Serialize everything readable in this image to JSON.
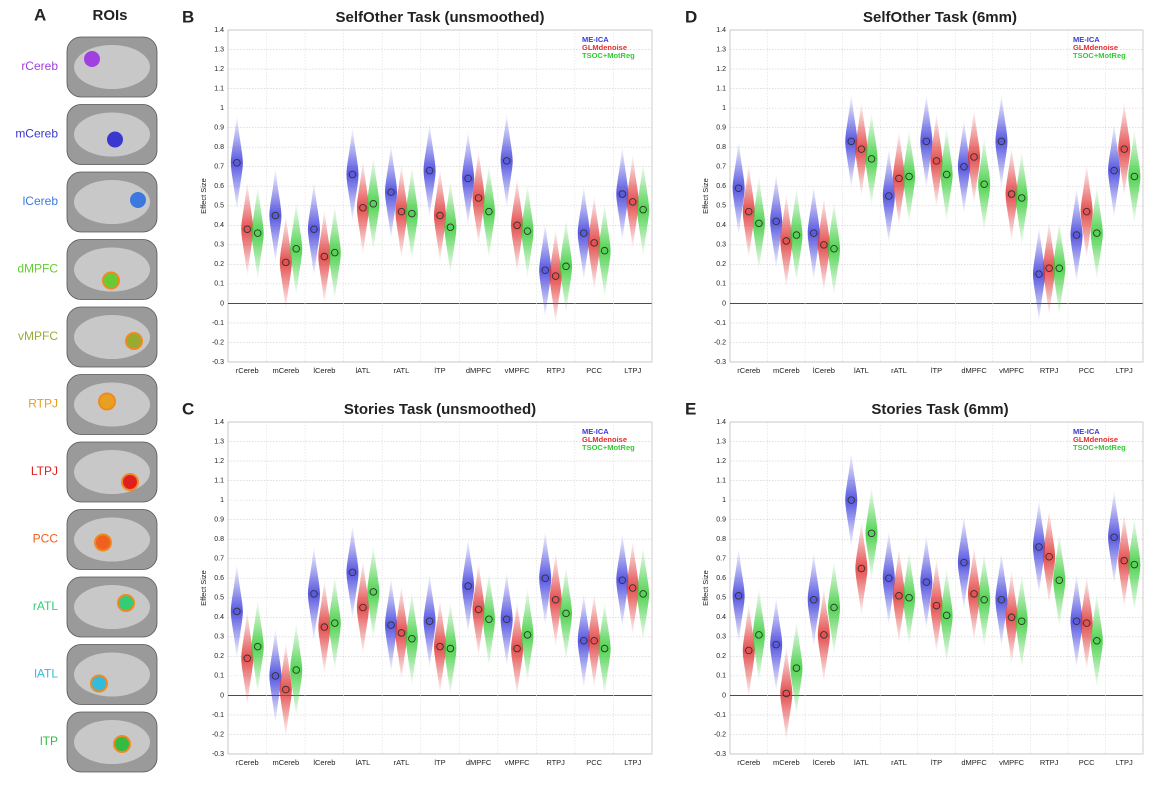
{
  "roi_panel": {
    "panel": "A",
    "title": "ROIs",
    "rois": [
      {
        "label": "rCereb",
        "color": "#a040e0"
      },
      {
        "label": "mCereb",
        "color": "#3838d0"
      },
      {
        "label": "lCereb",
        "color": "#3c78e0"
      },
      {
        "label": "dMPFC",
        "color": "#66cc33"
      },
      {
        "label": "vMPFC",
        "color": "#99aa33"
      },
      {
        "label": "RTPJ",
        "color": "#e8a020"
      },
      {
        "label": "LTPJ",
        "color": "#e02020"
      },
      {
        "label": "PCC",
        "color": "#f06020"
      },
      {
        "label": "rATL",
        "color": "#33cc77"
      },
      {
        "label": "lATL",
        "color": "#33bbdd"
      },
      {
        "label": "lTP",
        "color": "#33bb44"
      }
    ]
  },
  "chart_data": [
    {
      "type": "violin",
      "panel": "B",
      "title": "SelfOther Task (unsmoothed)",
      "ylabel": "Effect Size",
      "categories": [
        "rCereb",
        "mCereb",
        "lCereb",
        "lATL",
        "rATL",
        "lTP",
        "dMPFC",
        "vMPFC",
        "RTPJ",
        "PCC",
        "LTPJ"
      ],
      "series": [
        {
          "name": "ME-ICA",
          "color": "#3a3adc",
          "values": [
            0.72,
            0.45,
            0.38,
            0.66,
            0.57,
            0.68,
            0.64,
            0.73,
            0.17,
            0.36,
            0.56
          ]
        },
        {
          "name": "GLMdenoise",
          "color": "#e03030",
          "values": [
            0.38,
            0.21,
            0.24,
            0.49,
            0.47,
            0.45,
            0.54,
            0.4,
            0.14,
            0.31,
            0.52
          ]
        },
        {
          "name": "TSOC+MotReg",
          "color": "#33cc33",
          "values": [
            0.36,
            0.28,
            0.26,
            0.51,
            0.46,
            0.39,
            0.47,
            0.37,
            0.19,
            0.27,
            0.48
          ]
        }
      ],
      "ylim": [
        -0.3,
        1.4
      ],
      "yticks": [
        -0.3,
        -0.2,
        -0.1,
        0,
        0.1,
        0.2,
        0.3,
        0.4,
        0.5,
        0.6,
        0.7,
        0.8,
        0.9,
        1,
        1.1,
        1.2,
        1.3,
        1.4
      ],
      "grid": true,
      "legend": "upper right"
    },
    {
      "type": "violin",
      "panel": "D",
      "title": "SelfOther Task (6mm)",
      "ylabel": "Effect Size",
      "categories": [
        "rCereb",
        "mCereb",
        "lCereb",
        "lATL",
        "rATL",
        "lTP",
        "dMPFC",
        "vMPFC",
        "RTPJ",
        "PCC",
        "LTPJ"
      ],
      "series": [
        {
          "name": "ME-ICA",
          "color": "#3a3adc",
          "values": [
            0.59,
            0.42,
            0.36,
            0.83,
            0.55,
            0.83,
            0.7,
            0.83,
            0.15,
            0.35,
            0.68
          ]
        },
        {
          "name": "GLMdenoise",
          "color": "#e03030",
          "values": [
            0.47,
            0.32,
            0.3,
            0.79,
            0.64,
            0.73,
            0.75,
            0.56,
            0.18,
            0.47,
            0.79
          ]
        },
        {
          "name": "TSOC+MotReg",
          "color": "#33cc33",
          "values": [
            0.41,
            0.35,
            0.28,
            0.74,
            0.65,
            0.66,
            0.61,
            0.54,
            0.18,
            0.36,
            0.65
          ]
        }
      ],
      "ylim": [
        -0.3,
        1.4
      ],
      "yticks": [
        -0.3,
        -0.2,
        -0.1,
        0,
        0.1,
        0.2,
        0.3,
        0.4,
        0.5,
        0.6,
        0.7,
        0.8,
        0.9,
        1,
        1.1,
        1.2,
        1.3,
        1.4
      ],
      "grid": true,
      "legend": "upper right"
    },
    {
      "type": "violin",
      "panel": "C",
      "title": "Stories Task (unsmoothed)",
      "ylabel": "Effect Size",
      "categories": [
        "rCereb",
        "mCereb",
        "lCereb",
        "lATL",
        "rATL",
        "lTP",
        "dMPFC",
        "vMPFC",
        "RTPJ",
        "PCC",
        "LTPJ"
      ],
      "series": [
        {
          "name": "ME-ICA",
          "color": "#3a3adc",
          "values": [
            0.43,
            0.1,
            0.52,
            0.63,
            0.36,
            0.38,
            0.56,
            0.39,
            0.6,
            0.28,
            0.59
          ]
        },
        {
          "name": "GLMdenoise",
          "color": "#e03030",
          "values": [
            0.19,
            0.03,
            0.35,
            0.45,
            0.32,
            0.25,
            0.44,
            0.24,
            0.49,
            0.28,
            0.55
          ]
        },
        {
          "name": "TSOC+MotReg",
          "color": "#33cc33",
          "values": [
            0.25,
            0.13,
            0.37,
            0.53,
            0.29,
            0.24,
            0.39,
            0.31,
            0.42,
            0.24,
            0.52
          ]
        }
      ],
      "ylim": [
        -0.3,
        1.4
      ],
      "yticks": [
        -0.3,
        -0.2,
        -0.1,
        0,
        0.1,
        0.2,
        0.3,
        0.4,
        0.5,
        0.6,
        0.7,
        0.8,
        0.9,
        1,
        1.1,
        1.2,
        1.3,
        1.4
      ],
      "grid": true,
      "legend": "upper right"
    },
    {
      "type": "violin",
      "panel": "E",
      "title": "Stories Task (6mm)",
      "ylabel": "Effect Size",
      "categories": [
        "rCereb",
        "mCereb",
        "lCereb",
        "lATL",
        "rATL",
        "lTP",
        "dMPFC",
        "vMPFC",
        "RTPJ",
        "PCC",
        "LTPJ"
      ],
      "series": [
        {
          "name": "ME-ICA",
          "color": "#3a3adc",
          "values": [
            0.51,
            0.26,
            0.49,
            1.0,
            0.6,
            0.58,
            0.68,
            0.49,
            0.76,
            0.38,
            0.81
          ]
        },
        {
          "name": "GLMdenoise",
          "color": "#e03030",
          "values": [
            0.23,
            0.01,
            0.31,
            0.65,
            0.51,
            0.46,
            0.52,
            0.4,
            0.71,
            0.37,
            0.69
          ]
        },
        {
          "name": "TSOC+MotReg",
          "color": "#33cc33",
          "values": [
            0.31,
            0.14,
            0.45,
            0.83,
            0.5,
            0.41,
            0.49,
            0.38,
            0.59,
            0.28,
            0.67
          ]
        }
      ],
      "ylim": [
        -0.3,
        1.4
      ],
      "yticks": [
        -0.3,
        -0.2,
        -0.1,
        0,
        0.1,
        0.2,
        0.3,
        0.4,
        0.5,
        0.6,
        0.7,
        0.8,
        0.9,
        1,
        1.1,
        1.2,
        1.3,
        1.4
      ],
      "grid": true,
      "legend": "upper right"
    }
  ]
}
